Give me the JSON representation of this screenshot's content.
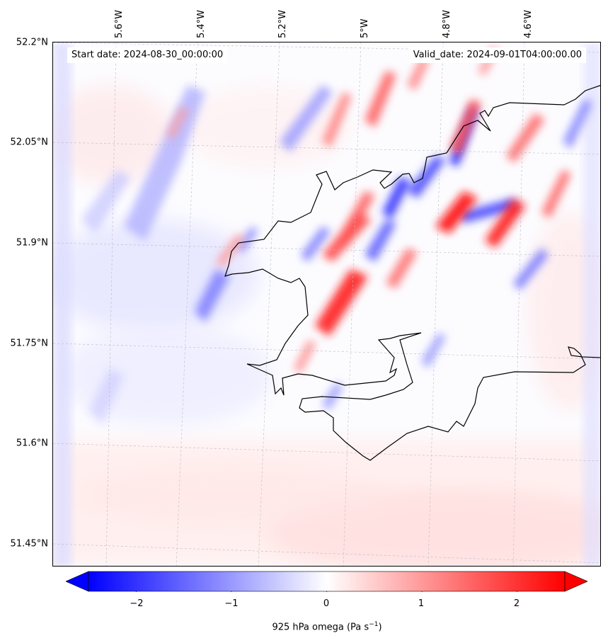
{
  "map": {
    "start_date": "Start date: 2024-08-30_00:00:00",
    "valid_date": "Valid_date: 2024-09-01T04:00:00.00",
    "lon_labels": [
      "5.6°W",
      "5.4°W",
      "5.2°W",
      "5°W",
      "4.8°W",
      "4.6°W"
    ],
    "lat_labels": [
      "52.2°N",
      "52.05°N",
      "51.9°N",
      "51.75°N",
      "51.6°N",
      "51.45°N"
    ],
    "variable": "925 hPa omega",
    "units": "Pa s",
    "units_exponent": "−1",
    "coastline_color": "#000000",
    "gridline_style": "dashed-grey"
  },
  "colorbar": {
    "cmap": "bwr",
    "min": -2.5,
    "max": 2.5,
    "extend": "both",
    "ticks": [
      "−2",
      "−1",
      "0",
      "1",
      "2"
    ],
    "tick_values": [
      -2,
      -1,
      0,
      1,
      2
    ],
    "colors": {
      "negative": "#0000ff",
      "zero": "#ffffff",
      "positive": "#ff0000"
    }
  }
}
